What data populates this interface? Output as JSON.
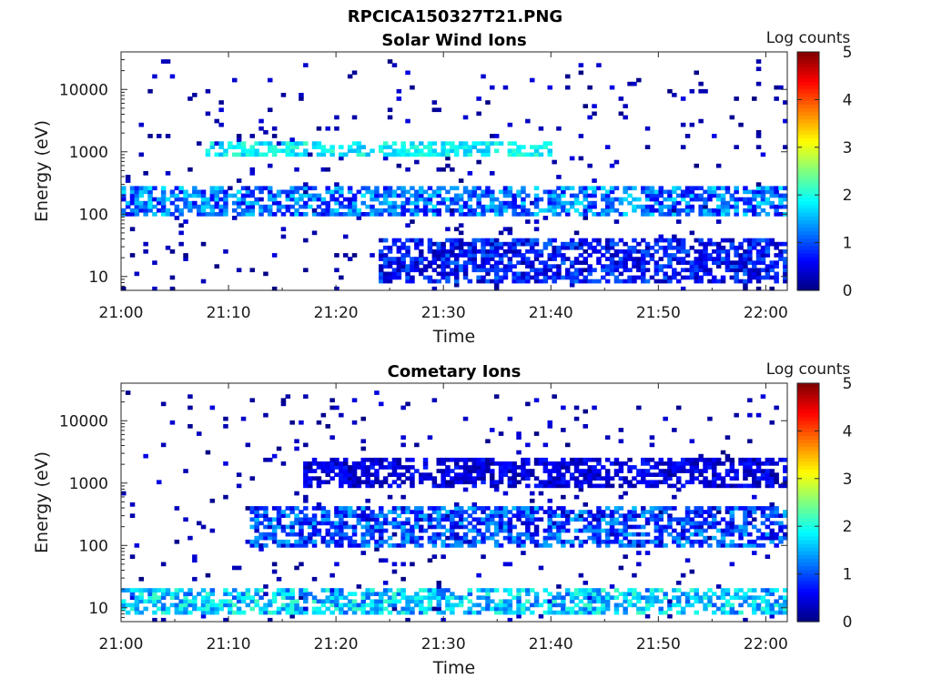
{
  "figure_title": "RPCICA150327T21.PNG",
  "chart_data": [
    {
      "type": "heatmap",
      "title": "Solar Wind Ions",
      "xlabel": "Time",
      "ylabel": "Energy (eV)",
      "x_tick_labels": [
        "21:00",
        "21:10",
        "21:20",
        "21:30",
        "21:40",
        "21:50",
        "22:00"
      ],
      "x_ticks_minutes": [
        0,
        10,
        20,
        30,
        40,
        50,
        60
      ],
      "xlim_minutes": [
        0,
        62
      ],
      "y_tick_labels": [
        "10",
        "100",
        "1000",
        "10000"
      ],
      "y_ticks": [
        10,
        100,
        1000,
        10000
      ],
      "ylim": [
        6,
        40000
      ],
      "y_scale": "log",
      "colorbar": {
        "label": "Log counts",
        "tick_labels": [
          "0",
          "1",
          "2",
          "3",
          "4",
          "5"
        ],
        "range": [
          0,
          5
        ],
        "colormap": "jet"
      },
      "dominant_features": [
        {
          "time_minutes": [
            0,
            62
          ],
          "energy_eV": [
            100,
            300
          ],
          "log_counts": [
            0.5,
            1.8
          ]
        },
        {
          "time_minutes": [
            24,
            62
          ],
          "energy_eV": [
            8,
            40
          ],
          "log_counts": [
            0.2,
            1.2
          ]
        },
        {
          "time_minutes": [
            8,
            40
          ],
          "energy_eV": [
            800,
            1500
          ],
          "log_counts": [
            1.5,
            2.2
          ]
        }
      ]
    },
    {
      "type": "heatmap",
      "title": "Cometary Ions",
      "xlabel": "Time",
      "ylabel": "Energy (eV)",
      "x_tick_labels": [
        "21:00",
        "21:10",
        "21:20",
        "21:30",
        "21:40",
        "21:50",
        "22:00"
      ],
      "x_ticks_minutes": [
        0,
        10,
        20,
        30,
        40,
        50,
        60
      ],
      "xlim_minutes": [
        0,
        62
      ],
      "y_tick_labels": [
        "10",
        "100",
        "1000",
        "10000"
      ],
      "y_ticks": [
        10,
        100,
        1000,
        10000
      ],
      "ylim": [
        6,
        40000
      ],
      "y_scale": "log",
      "colorbar": {
        "label": "Log counts",
        "tick_labels": [
          "0",
          "1",
          "2",
          "3",
          "4",
          "5"
        ],
        "range": [
          0,
          5
        ],
        "colormap": "jet"
      },
      "dominant_features": [
        {
          "time_minutes": [
            0,
            62
          ],
          "energy_eV": [
            8,
            20
          ],
          "log_counts": [
            1.0,
            2.2
          ]
        },
        {
          "time_minutes": [
            12,
            62
          ],
          "energy_eV": [
            100,
            400
          ],
          "log_counts": [
            0.3,
            1.6
          ]
        },
        {
          "time_minutes": [
            17,
            62
          ],
          "energy_eV": [
            800,
            2500
          ],
          "log_counts": [
            0.1,
            0.8
          ]
        }
      ]
    }
  ]
}
